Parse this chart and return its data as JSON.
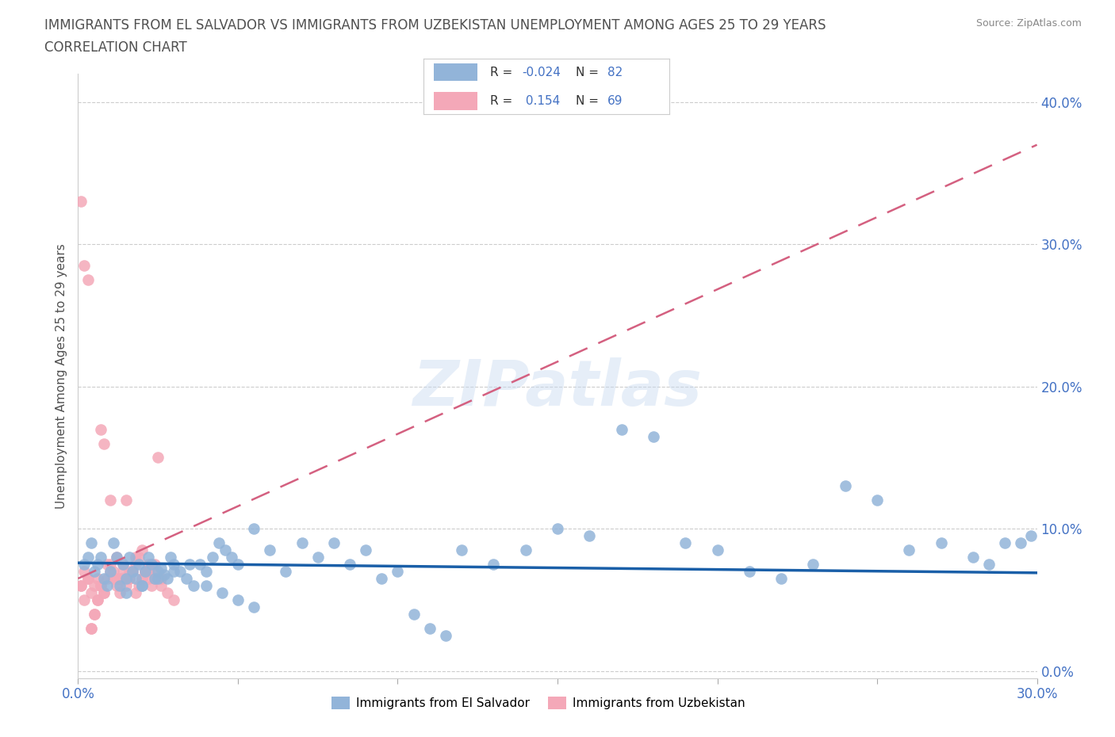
{
  "title_line1": "IMMIGRANTS FROM EL SALVADOR VS IMMIGRANTS FROM UZBEKISTAN UNEMPLOYMENT AMONG AGES 25 TO 29 YEARS",
  "title_line2": "CORRELATION CHART",
  "source_text": "Source: ZipAtlas.com",
  "ylabel": "Unemployment Among Ages 25 to 29 years",
  "xmin": 0.0,
  "xmax": 0.3,
  "ymin": -0.005,
  "ymax": 0.42,
  "xticks": [
    0.0,
    0.05,
    0.1,
    0.15,
    0.2,
    0.25,
    0.3
  ],
  "yticks_right": [
    0.0,
    0.1,
    0.2,
    0.3,
    0.4
  ],
  "el_salvador_color": "#92b4d9",
  "uzbekistan_color": "#f4a8b8",
  "el_salvador_R": -0.024,
  "el_salvador_N": 82,
  "uzbekistan_R": 0.154,
  "uzbekistan_N": 69,
  "legend_label_1": "Immigrants from El Salvador",
  "legend_label_2": "Immigrants from Uzbekistan",
  "watermark": "ZIPatlas",
  "background_color": "#ffffff",
  "grid_color": "#cccccc",
  "axis_color": "#4472c4",
  "title_color": "#505050",
  "el_salvador_trend_color": "#1a5fa8",
  "uzbekistan_trend_color": "#d46080",
  "el_salvador_x": [
    0.002,
    0.003,
    0.004,
    0.005,
    0.006,
    0.007,
    0.008,
    0.009,
    0.01,
    0.011,
    0.012,
    0.013,
    0.014,
    0.015,
    0.016,
    0.017,
    0.018,
    0.019,
    0.02,
    0.021,
    0.022,
    0.023,
    0.024,
    0.025,
    0.026,
    0.027,
    0.028,
    0.029,
    0.03,
    0.032,
    0.034,
    0.036,
    0.038,
    0.04,
    0.042,
    0.044,
    0.046,
    0.048,
    0.05,
    0.055,
    0.06,
    0.065,
    0.07,
    0.075,
    0.08,
    0.085,
    0.09,
    0.095,
    0.1,
    0.105,
    0.11,
    0.115,
    0.12,
    0.13,
    0.14,
    0.15,
    0.16,
    0.17,
    0.18,
    0.19,
    0.2,
    0.21,
    0.22,
    0.23,
    0.24,
    0.25,
    0.26,
    0.27,
    0.28,
    0.285,
    0.29,
    0.295,
    0.298,
    0.015,
    0.02,
    0.025,
    0.03,
    0.035,
    0.04,
    0.045,
    0.05,
    0.055
  ],
  "el_salvador_y": [
    0.075,
    0.08,
    0.09,
    0.07,
    0.075,
    0.08,
    0.065,
    0.06,
    0.07,
    0.09,
    0.08,
    0.06,
    0.075,
    0.065,
    0.08,
    0.07,
    0.065,
    0.075,
    0.06,
    0.07,
    0.08,
    0.075,
    0.065,
    0.07,
    0.072,
    0.068,
    0.065,
    0.08,
    0.075,
    0.07,
    0.065,
    0.06,
    0.075,
    0.07,
    0.08,
    0.09,
    0.085,
    0.08,
    0.075,
    0.1,
    0.085,
    0.07,
    0.09,
    0.08,
    0.09,
    0.075,
    0.085,
    0.065,
    0.07,
    0.04,
    0.03,
    0.025,
    0.085,
    0.075,
    0.085,
    0.1,
    0.095,
    0.17,
    0.165,
    0.09,
    0.085,
    0.07,
    0.065,
    0.075,
    0.13,
    0.12,
    0.085,
    0.09,
    0.08,
    0.075,
    0.09,
    0.09,
    0.095,
    0.055,
    0.06,
    0.065,
    0.07,
    0.075,
    0.06,
    0.055,
    0.05,
    0.045
  ],
  "uzbekistan_x": [
    0.001,
    0.002,
    0.003,
    0.004,
    0.005,
    0.006,
    0.007,
    0.008,
    0.009,
    0.01,
    0.011,
    0.012,
    0.013,
    0.014,
    0.015,
    0.016,
    0.017,
    0.018,
    0.019,
    0.02,
    0.021,
    0.022,
    0.023,
    0.024,
    0.025,
    0.026,
    0.001,
    0.002,
    0.003,
    0.004,
    0.005,
    0.006,
    0.007,
    0.008,
    0.009,
    0.01,
    0.011,
    0.012,
    0.013,
    0.014,
    0.015,
    0.016,
    0.017,
    0.018,
    0.019,
    0.02,
    0.021,
    0.022,
    0.023,
    0.024,
    0.001,
    0.002,
    0.003,
    0.004,
    0.005,
    0.006,
    0.007,
    0.008,
    0.01,
    0.012,
    0.014,
    0.016,
    0.018,
    0.02,
    0.022,
    0.024,
    0.026,
    0.028,
    0.03
  ],
  "uzbekistan_y": [
    0.06,
    0.05,
    0.065,
    0.03,
    0.04,
    0.05,
    0.06,
    0.055,
    0.065,
    0.075,
    0.07,
    0.08,
    0.065,
    0.07,
    0.12,
    0.065,
    0.07,
    0.075,
    0.08,
    0.085,
    0.07,
    0.065,
    0.075,
    0.07,
    0.15,
    0.065,
    0.06,
    0.07,
    0.065,
    0.055,
    0.06,
    0.065,
    0.17,
    0.16,
    0.075,
    0.12,
    0.065,
    0.06,
    0.055,
    0.065,
    0.06,
    0.065,
    0.07,
    0.055,
    0.06,
    0.065,
    0.07,
    0.075,
    0.06,
    0.065,
    0.33,
    0.285,
    0.275,
    0.03,
    0.04,
    0.05,
    0.06,
    0.055,
    0.07,
    0.065,
    0.075,
    0.07,
    0.08,
    0.065,
    0.07,
    0.075,
    0.06,
    0.055,
    0.05
  ],
  "el_trend_x": [
    0.0,
    0.3
  ],
  "el_trend_y": [
    0.076,
    0.069
  ],
  "uz_trend_x": [
    0.0,
    0.3
  ],
  "uz_trend_y": [
    0.065,
    0.37
  ]
}
